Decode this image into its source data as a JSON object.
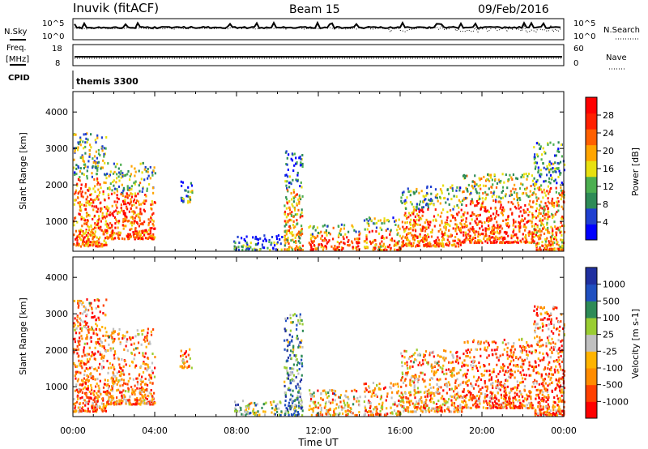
{
  "header": {
    "station": "Inuvik (fitACF)",
    "beam": "Beam 15",
    "date": "09/Feb/2016"
  },
  "top_panels": {
    "nsky_label": "N.Sky",
    "nsearch_label": "N.Search",
    "noise_ticks_left": [
      "10^5",
      "10^0"
    ],
    "noise_ticks_right": [
      "10^5",
      "10^0"
    ],
    "freq_label_1": "Freq.",
    "freq_label_2": "[MHz]",
    "freq_ticks": [
      "18",
      "8"
    ],
    "nave_label": "Nave",
    "nave_ticks": [
      "60",
      "0"
    ],
    "cpid_label": "CPID",
    "cpid_value": "themis 3300"
  },
  "colors": {
    "power": [
      "#0000ff",
      "#2040d0",
      "#2e8b57",
      "#4caf50",
      "#e8e010",
      "#ffa500",
      "#ff6000",
      "#ff2000",
      "#ff0000"
    ],
    "velocity": [
      "#ff0000",
      "#ff4000",
      "#ff8c00",
      "#ffb400",
      "#c0c0c0",
      "#9acd32",
      "#2e8b57",
      "#2050c0",
      "#2030a0"
    ]
  },
  "chart_data": [
    {
      "type": "heatmap",
      "panel": "power",
      "ylabel": "Slant Range [km]",
      "yticks": [
        "1000",
        "2000",
        "3000",
        "4000"
      ],
      "ylim": [
        180,
        4560
      ],
      "xlim": [
        0,
        24
      ],
      "colorbar": {
        "label": "Power [dB]",
        "ticks": [
          "4",
          "8",
          "12",
          "16",
          "20",
          "24",
          "28"
        ],
        "range": [
          0,
          32
        ]
      },
      "scatter_regions": [
        {
          "t": [
            0.0,
            1.6
          ],
          "r": [
            300,
            3400
          ],
          "level": 0.72
        },
        {
          "t": [
            1.6,
            4.0
          ],
          "r": [
            500,
            2600
          ],
          "level": 0.75
        },
        {
          "t": [
            5.2,
            5.8
          ],
          "r": [
            1500,
            2100
          ],
          "level": 0.35
        },
        {
          "t": [
            7.8,
            10.2
          ],
          "r": [
            200,
            600
          ],
          "level": 0.3
        },
        {
          "t": [
            10.3,
            11.2
          ],
          "r": [
            200,
            3000
          ],
          "level": 0.55
        },
        {
          "t": [
            11.5,
            14.0
          ],
          "r": [
            200,
            900
          ],
          "level": 0.8
        },
        {
          "t": [
            14.2,
            16.0
          ],
          "r": [
            200,
            1100
          ],
          "level": 0.7
        },
        {
          "t": [
            16.0,
            19.0
          ],
          "r": [
            300,
            2000
          ],
          "level": 0.72
        },
        {
          "t": [
            19.0,
            22.5
          ],
          "r": [
            400,
            2300
          ],
          "level": 0.8
        },
        {
          "t": [
            22.5,
            24.0
          ],
          "r": [
            200,
            3200
          ],
          "level": 0.65
        }
      ]
    },
    {
      "type": "heatmap",
      "panel": "velocity",
      "ylabel": "Slant Range [km]",
      "yticks": [
        "1000",
        "2000",
        "3000",
        "4000"
      ],
      "ylim": [
        180,
        4560
      ],
      "xlim": [
        0,
        24
      ],
      "xticks": [
        "00:00",
        "04:00",
        "08:00",
        "12:00",
        "16:00",
        "20:00",
        "00:00"
      ],
      "xlabel": "Time UT",
      "colorbar": {
        "label": "Velocity [m s-1]",
        "ticks": [
          "1000",
          "500",
          "100",
          "25",
          "-25",
          "-100",
          "-500",
          "-1000"
        ],
        "range": [
          -1500,
          1500
        ]
      },
      "scatter_regions": [
        {
          "t": [
            0.0,
            1.6
          ],
          "r": [
            300,
            3400
          ],
          "level": 0.25
        },
        {
          "t": [
            1.6,
            4.0
          ],
          "r": [
            500,
            2600
          ],
          "level": 0.3
        },
        {
          "t": [
            5.2,
            5.8
          ],
          "r": [
            1500,
            2100
          ],
          "level": 0.35
        },
        {
          "t": [
            7.8,
            10.2
          ],
          "r": [
            200,
            600
          ],
          "level": 0.6
        },
        {
          "t": [
            10.3,
            11.2
          ],
          "r": [
            200,
            3000
          ],
          "level": 0.7
        },
        {
          "t": [
            11.5,
            14.0
          ],
          "r": [
            200,
            900
          ],
          "level": 0.4
        },
        {
          "t": [
            14.2,
            16.0
          ],
          "r": [
            200,
            1100
          ],
          "level": 0.35
        },
        {
          "t": [
            16.0,
            19.0
          ],
          "r": [
            300,
            2000
          ],
          "level": 0.33
        },
        {
          "t": [
            19.0,
            22.5
          ],
          "r": [
            400,
            2300
          ],
          "level": 0.22
        },
        {
          "t": [
            22.5,
            24.0
          ],
          "r": [
            200,
            3200
          ],
          "level": 0.2
        }
      ]
    }
  ]
}
